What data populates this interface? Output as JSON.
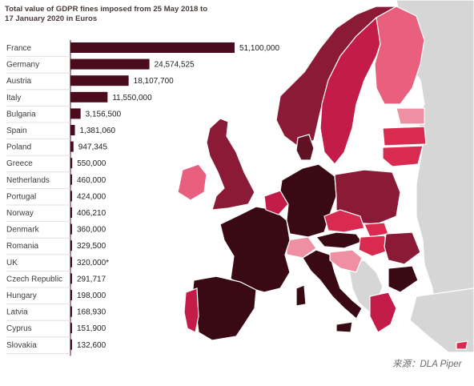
{
  "chart_data": {
    "type": "bar",
    "orientation": "horizontal",
    "title": "Total value of GDPR fines imposed from 25 May 2018 to 17 January 2020 in Euros",
    "source": "来源：DLA Piper",
    "categories": [
      "France",
      "Germany",
      "Austria",
      "Italy",
      "Bulgaria",
      "Spain",
      "Poland",
      "Greece",
      "Netherlands",
      "Portugal",
      "Norway",
      "Denmark",
      "Romania",
      "UK",
      "Czech Republic",
      "Hungary",
      "Latvia",
      "Cyprus",
      "Slovakia"
    ],
    "values": [
      51100000,
      24574525,
      18107700,
      11550000,
      3156500,
      1381060,
      947345,
      550000,
      460000,
      424000,
      406210,
      360000,
      329500,
      320000,
      291717,
      198000,
      168930,
      151900,
      132600
    ],
    "value_labels": [
      "51,100,000",
      "24,574,525",
      "18,107,700",
      "11,550,000",
      "3,156,500",
      "1,381,060",
      "947,345",
      "550,000",
      "460,000",
      "424,000",
      "406,210",
      "360,000",
      "329,500",
      "320,000*",
      "291,717",
      "198,000",
      "168,930",
      "151,900",
      "132,600"
    ],
    "bar_color": "#4a0c1c",
    "grid": false
  },
  "map_colors": {
    "darkest": "#3a0a14",
    "dark": "#5e1224",
    "mid": "#8a1a35",
    "crimson": "#c41c48",
    "red": "#d92a50",
    "pink": "#e8607e",
    "light_pink": "#ef8fa2",
    "grey": "#d6d6d6",
    "sea": "#ffffff"
  }
}
